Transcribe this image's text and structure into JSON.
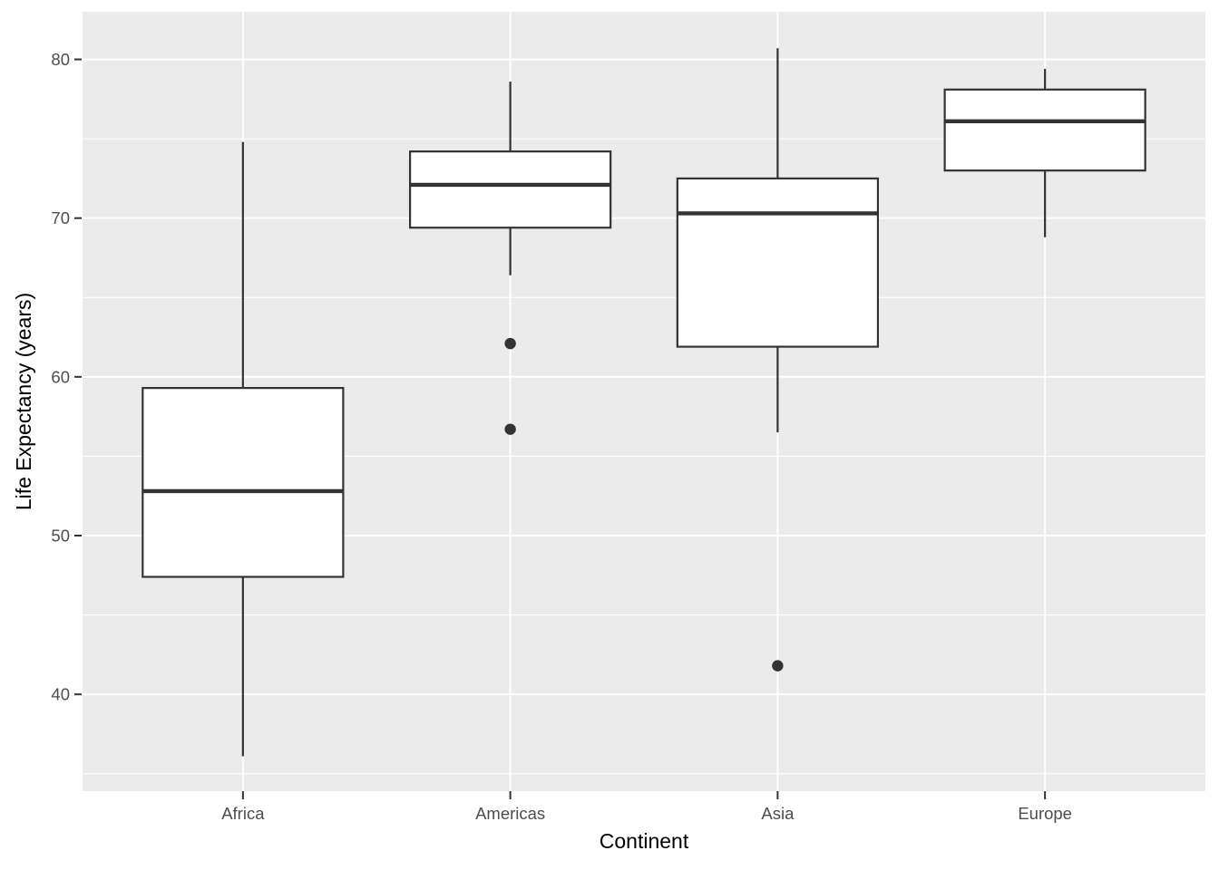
{
  "chart_data": {
    "type": "boxplot",
    "title": "",
    "xlabel": "Continent",
    "ylabel": "Life Expectancy (years)",
    "categories": [
      "Africa",
      "Americas",
      "Asia",
      "Europe"
    ],
    "y_ticks": [
      40,
      50,
      60,
      70,
      80
    ],
    "y_minor_ticks": [
      35,
      45,
      55,
      65,
      75
    ],
    "ylim": [
      33.9,
      83.0
    ],
    "grid": "on",
    "legend": "none",
    "series": [
      {
        "category": "Africa",
        "whisker_low": 36.1,
        "q1": 47.4,
        "median": 52.8,
        "q3": 59.3,
        "whisker_high": 74.8,
        "outliers": []
      },
      {
        "category": "Americas",
        "whisker_low": 66.4,
        "q1": 69.4,
        "median": 72.1,
        "q3": 74.2,
        "whisker_high": 78.6,
        "outliers": [
          62.1,
          56.7
        ]
      },
      {
        "category": "Asia",
        "whisker_low": 56.5,
        "q1": 61.9,
        "median": 70.3,
        "q3": 72.5,
        "whisker_high": 80.7,
        "outliers": [
          41.8
        ]
      },
      {
        "category": "Europe",
        "whisker_low": 68.8,
        "q1": 73.0,
        "median": 76.1,
        "q3": 78.1,
        "whisker_high": 79.4,
        "outliers": []
      }
    ],
    "colors": {
      "panel_background": "#EBEBEB",
      "gridline": "#FFFFFF",
      "box_stroke": "#333333",
      "box_fill": "#FFFFFF",
      "outlier": "#333333",
      "tick_mark": "#333333",
      "axis_text": "#4D4D4D",
      "axis_title": "#000000"
    }
  }
}
